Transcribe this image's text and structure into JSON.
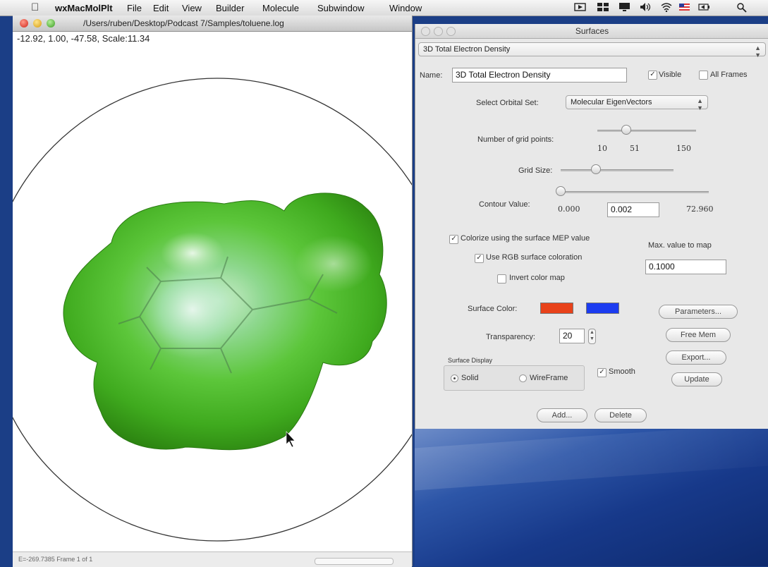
{
  "menubar": {
    "app_name": "wxMacMolPlt",
    "items": [
      "File",
      "Edit",
      "View",
      "Builder",
      "Molecule",
      "Subwindow",
      "Window"
    ]
  },
  "molecule_window": {
    "title": "/Users/ruben/Desktop/Podcast 7/Samples/toluene.log",
    "coords": "-12.92,  1.00,  -47.58,  Scale:11.34",
    "status": "E=-269.7385 Frame 1 of 1"
  },
  "surfaces_panel": {
    "title": "Surfaces",
    "surface_select": "3D Total Electron Density",
    "name_label": "Name:",
    "name_value": "3D Total Electron Density",
    "visible_label": "Visible",
    "visible_checked": true,
    "all_frames_label": "All Frames",
    "all_frames_checked": false,
    "orbital_set_label": "Select Orbital Set:",
    "orbital_set_value": "Molecular EigenVectors",
    "grid_points_label": "Number of grid points:",
    "grid_points_min": "10",
    "grid_points_value": "51",
    "grid_points_max": "150",
    "grid_points_slider_fraction": 0.29,
    "grid_size_label": "Grid Size:",
    "grid_size_slider_fraction": 0.31,
    "contour_label": "Contour Value:",
    "contour_min": "0.000",
    "contour_value": "0.002",
    "contour_max": "72.960",
    "contour_slider_fraction": 0.0,
    "colorize_label": "Colorize using the surface MEP value",
    "colorize_checked": true,
    "rgb_label": "Use RGB surface coloration",
    "rgb_checked": true,
    "invert_label": "Invert color map",
    "invert_checked": false,
    "max_value_label": "Max. value to map",
    "max_value": "0.1000",
    "surface_color_label": "Surface Color:",
    "surface_color_1": "#e8421a",
    "surface_color_2": "#1c3cf0",
    "transparency_label": "Transparency:",
    "transparency_value": "20",
    "display_group_label": "Surface Display",
    "solid_label": "Solid",
    "wireframe_label": "WireFrame",
    "solid_selected": true,
    "smooth_label": "Smooth",
    "smooth_checked": true,
    "parameters_button": "Parameters...",
    "free_mem_button": "Free Mem",
    "export_button": "Export...",
    "update_button": "Update",
    "add_button": "Add...",
    "delete_button": "Delete"
  }
}
